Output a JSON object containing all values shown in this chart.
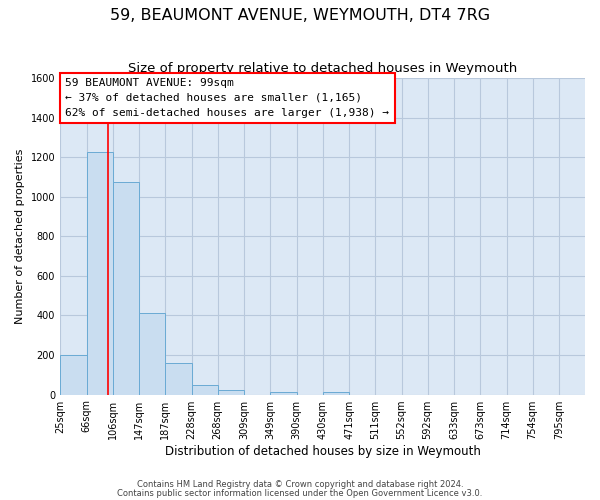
{
  "title": "59, BEAUMONT AVENUE, WEYMOUTH, DT4 7RG",
  "subtitle": "Size of property relative to detached houses in Weymouth",
  "xlabel": "Distribution of detached houses by size in Weymouth",
  "ylabel": "Number of detached properties",
  "footnote1": "Contains HM Land Registry data © Crown copyright and database right 2024.",
  "footnote2": "Contains public sector information licensed under the Open Government Licence v3.0.",
  "bar_edges": [
    25,
    66,
    106,
    147,
    187,
    228,
    268,
    309,
    349,
    390,
    430,
    471,
    511,
    552,
    592,
    633,
    673,
    714,
    754,
    795,
    835
  ],
  "bar_heights": [
    200,
    1225,
    1075,
    410,
    160,
    50,
    25,
    0,
    15,
    0,
    15,
    0,
    0,
    0,
    0,
    0,
    0,
    0,
    0,
    0
  ],
  "bar_color": "#c9ddf0",
  "bar_edgecolor": "#6aaad4",
  "grid_color": "#b8c8dc",
  "bg_color": "#dce8f5",
  "red_line_x": 99,
  "ylim": [
    0,
    1600
  ],
  "yticks": [
    0,
    200,
    400,
    600,
    800,
    1000,
    1200,
    1400,
    1600
  ],
  "annotation_line1": "59 BEAUMONT AVENUE: 99sqm",
  "annotation_line2": "← 37% of detached houses are smaller (1,165)",
  "annotation_line3": "62% of semi-detached houses are larger (1,938) →",
  "title_fontsize": 11.5,
  "subtitle_fontsize": 9.5,
  "tick_label_fontsize": 7,
  "ylabel_fontsize": 8,
  "xlabel_fontsize": 8.5,
  "annot_fontsize": 8,
  "footnote_fontsize": 6
}
